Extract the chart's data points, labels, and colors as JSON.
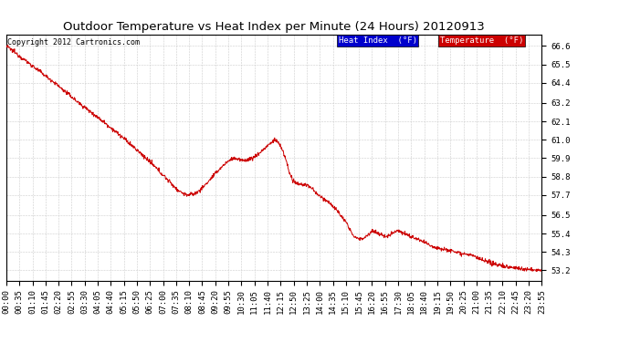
{
  "title": "Outdoor Temperature vs Heat Index per Minute (24 Hours) 20120913",
  "copyright_text": "Copyright 2012 Cartronics.com",
  "legend_heat_index": "Heat Index  (°F)",
  "legend_temperature": "Temperature  (°F)",
  "y_ticks": [
    53.2,
    54.3,
    55.4,
    56.5,
    57.7,
    58.8,
    59.9,
    61.0,
    62.1,
    63.2,
    64.4,
    65.5,
    66.6
  ],
  "ylim": [
    52.6,
    67.3
  ],
  "x_tick_labels": [
    "00:00",
    "00:35",
    "01:10",
    "01:45",
    "02:20",
    "02:55",
    "03:30",
    "04:05",
    "04:40",
    "05:15",
    "05:50",
    "06:25",
    "07:00",
    "07:35",
    "08:10",
    "08:45",
    "09:20",
    "09:55",
    "10:30",
    "11:05",
    "11:40",
    "12:15",
    "12:50",
    "13:25",
    "14:00",
    "14:35",
    "15:10",
    "15:45",
    "16:20",
    "16:55",
    "17:30",
    "18:05",
    "18:40",
    "19:15",
    "19:50",
    "20:25",
    "21:00",
    "21:35",
    "22:10",
    "22:45",
    "23:20",
    "23:55"
  ],
  "background_color": "#ffffff",
  "grid_color": "#cccccc",
  "line_color_temp": "#cc0000",
  "line_color_heat": "#cc0000",
  "legend_heat_bg": "#0000cc",
  "legend_temp_bg": "#cc0000",
  "title_fontsize": 9.5,
  "tick_fontsize": 6.5,
  "copyright_fontsize": 6
}
